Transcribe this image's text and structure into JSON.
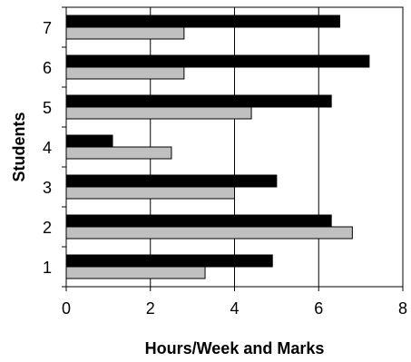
{
  "chart_data": {
    "type": "bar",
    "orientation": "horizontal",
    "categories": [
      "1",
      "2",
      "3",
      "4",
      "5",
      "6",
      "7"
    ],
    "series": [
      {
        "values": [
          4.9,
          6.3,
          5.0,
          1.1,
          6.3,
          7.2,
          6.5
        ],
        "color": "#000000"
      },
      {
        "values": [
          3.3,
          6.8,
          4.0,
          2.5,
          4.4,
          2.8,
          2.8
        ],
        "color": "#c0c0c0"
      }
    ],
    "xlabel": "Hours/Week and Marks",
    "ylabel": "Students",
    "xlim": [
      0,
      8
    ],
    "xticks": [
      "0",
      "2",
      "4",
      "6",
      "8"
    ],
    "grid": "vertical"
  }
}
